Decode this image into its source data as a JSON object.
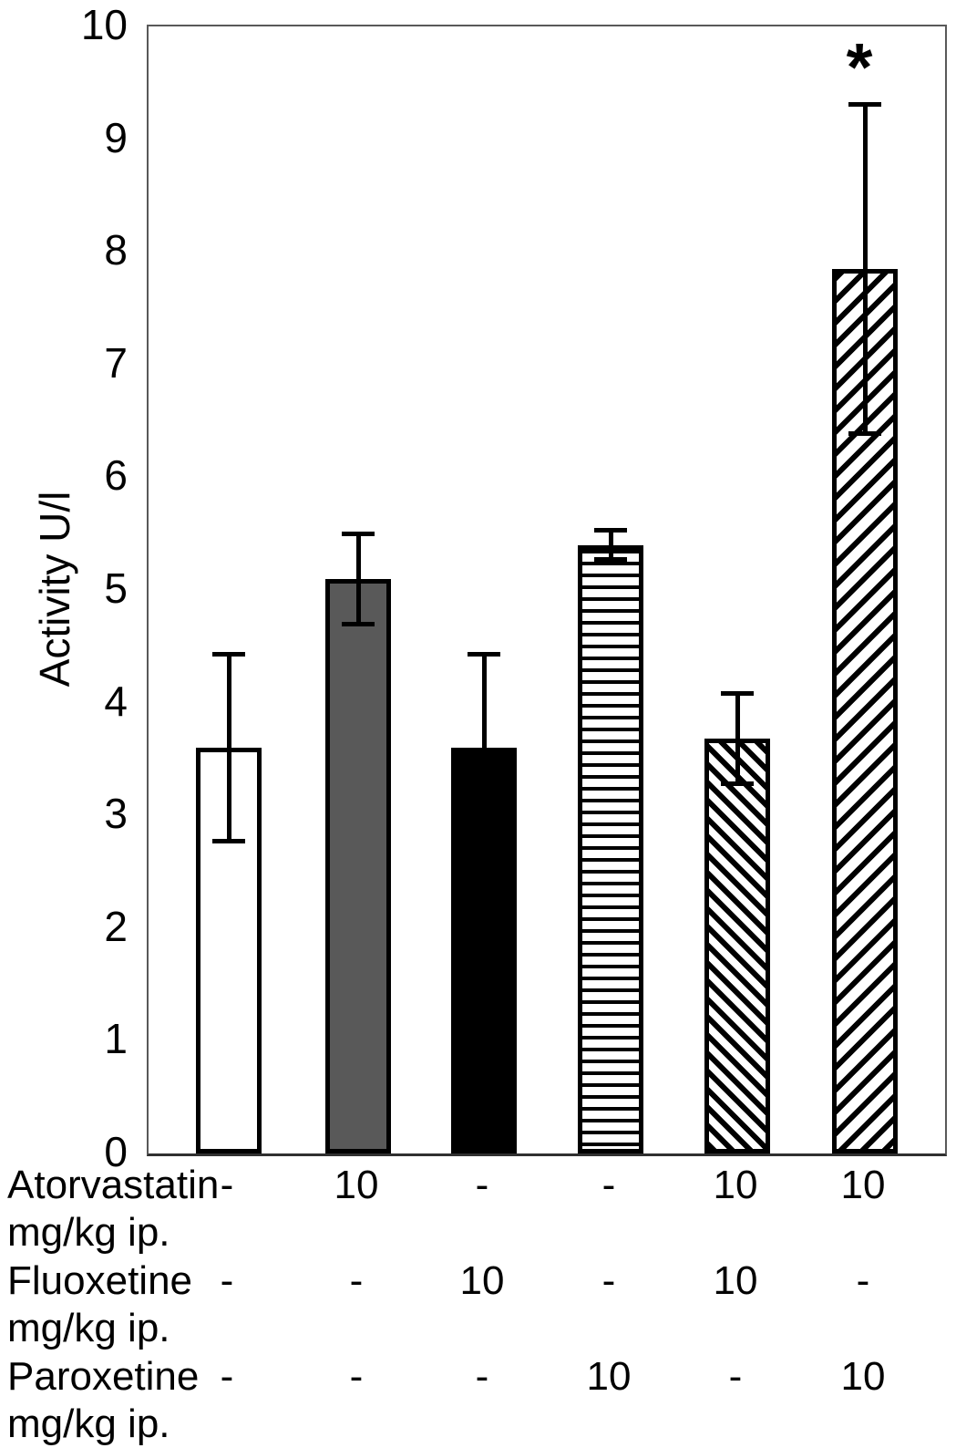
{
  "figure": {
    "background": "#ffffff",
    "significance_marker": "*"
  },
  "chart_data": {
    "type": "bar",
    "title": "",
    "xlabel": "",
    "ylabel": "Activity U/l",
    "ylim": [
      0,
      10
    ],
    "yticks": [
      "0",
      "1",
      "2",
      "3",
      "4",
      "5",
      "6",
      "7",
      "8",
      "9",
      "10"
    ],
    "grid": false,
    "legend": "none",
    "bars": [
      {
        "id": "bar-1",
        "value": 3.6,
        "error": 0.85,
        "pattern": "white",
        "annotation": ""
      },
      {
        "id": "bar-2",
        "value": 5.1,
        "error": 0.42,
        "pattern": "solid-gray",
        "annotation": ""
      },
      {
        "id": "bar-3",
        "value": 3.6,
        "error": 0.85,
        "pattern": "solid-black",
        "annotation": ""
      },
      {
        "id": "bar-4",
        "value": 5.4,
        "error": 0.15,
        "pattern": "horizontal-stripes",
        "annotation": ""
      },
      {
        "id": "bar-5",
        "value": 3.68,
        "error": 0.42,
        "pattern": "diagonal-stripes-down",
        "annotation": ""
      },
      {
        "id": "bar-6",
        "value": 7.85,
        "error": 1.48,
        "pattern": "diagonal-stripes-up",
        "annotation": "*"
      }
    ],
    "dose_table": {
      "rows": [
        {
          "label": "Atorvastatin",
          "unit": "mg/kg ip.",
          "values": [
            "-",
            "10",
            "-",
            "-",
            "10",
            "10"
          ]
        },
        {
          "label": "Fluoxetine",
          "unit": "mg/kg ip.",
          "values": [
            "-",
            "-",
            "10",
            "-",
            "10",
            "-"
          ]
        },
        {
          "label": "Paroxetine",
          "unit": "mg/kg ip.",
          "values": [
            "-",
            "-",
            "-",
            "10",
            "-",
            "10"
          ]
        }
      ]
    },
    "colors": {
      "gray_fill": "#595959",
      "bar_border": "#000000",
      "axis_frame": "#595959",
      "error_bar": "#000000"
    }
  }
}
